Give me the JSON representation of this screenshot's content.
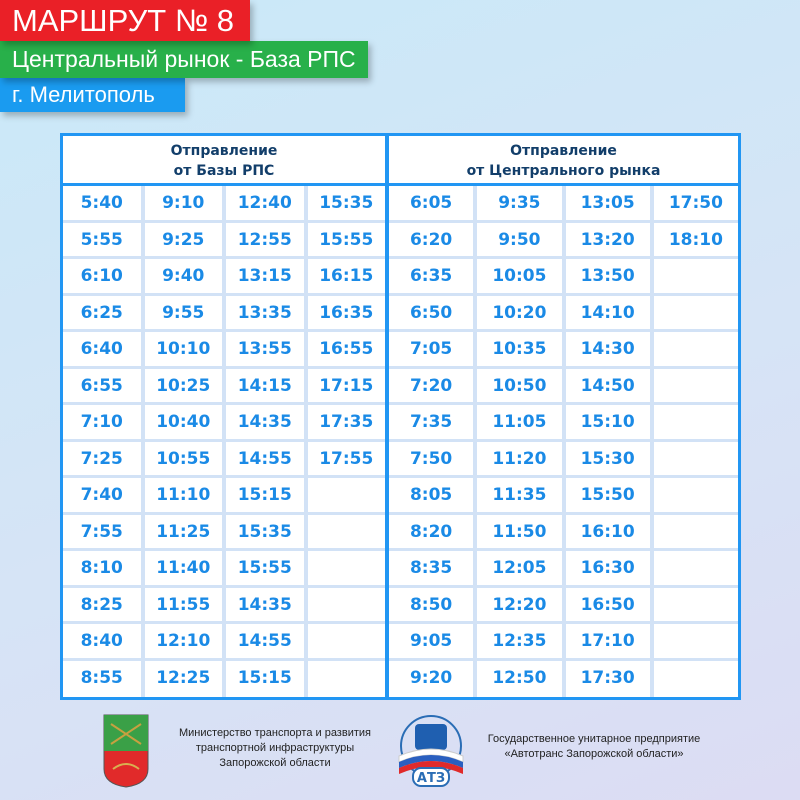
{
  "header": {
    "route": "МАРШРУТ № 8",
    "route_name": "Центральный рынок - База РПС",
    "city": "г. Мелитополь"
  },
  "left": {
    "title1": "Отправление",
    "title2": "от Базы РПС",
    "rows": [
      [
        "5:40",
        "9:10",
        "12:40",
        "15:35"
      ],
      [
        "5:55",
        "9:25",
        "12:55",
        "15:55"
      ],
      [
        "6:10",
        "9:40",
        "13:15",
        "16:15"
      ],
      [
        "6:25",
        "9:55",
        "13:35",
        "16:35"
      ],
      [
        "6:40",
        "10:10",
        "13:55",
        "16:55"
      ],
      [
        "6:55",
        "10:25",
        "14:15",
        "17:15"
      ],
      [
        "7:10",
        "10:40",
        "14:35",
        "17:35"
      ],
      [
        "7:25",
        "10:55",
        "14:55",
        "17:55"
      ],
      [
        "7:40",
        "11:10",
        "15:15",
        ""
      ],
      [
        "7:55",
        "11:25",
        "15:35",
        ""
      ],
      [
        "8:10",
        "11:40",
        "15:55",
        ""
      ],
      [
        "8:25",
        "11:55",
        "14:35",
        ""
      ],
      [
        "8:40",
        "12:10",
        "14:55",
        ""
      ],
      [
        "8:55",
        "12:25",
        "15:15",
        ""
      ]
    ]
  },
  "right": {
    "title1": "Отправление",
    "title2": "от Центрального рынка",
    "rows": [
      [
        "6:05",
        "9:35",
        "13:05",
        "17:50"
      ],
      [
        "6:20",
        "9:50",
        "13:20",
        "18:10"
      ],
      [
        "6:35",
        "10:05",
        "13:50",
        ""
      ],
      [
        "6:50",
        "10:20",
        "14:10",
        ""
      ],
      [
        "7:05",
        "10:35",
        "14:30",
        ""
      ],
      [
        "7:20",
        "10:50",
        "14:50",
        ""
      ],
      [
        "7:35",
        "11:05",
        "15:10",
        ""
      ],
      [
        "7:50",
        "11:20",
        "15:30",
        ""
      ],
      [
        "8:05",
        "11:35",
        "15:50",
        ""
      ],
      [
        "8:20",
        "11:50",
        "16:10",
        ""
      ],
      [
        "8:35",
        "12:05",
        "16:30",
        ""
      ],
      [
        "8:50",
        "12:20",
        "16:50",
        ""
      ],
      [
        "9:05",
        "12:35",
        "17:10",
        ""
      ],
      [
        "9:20",
        "12:50",
        "17:30",
        ""
      ]
    ]
  },
  "footer": {
    "ministry": [
      "Министерство транспорта и развития",
      "транспортной инфраструктуры",
      "Запорожской области"
    ],
    "company": [
      "Государственное унитарное предприятие",
      "«Автотранс Запорожской области»"
    ],
    "logo_text": "АТЗ"
  },
  "colors": {
    "red": "#ea2027",
    "green": "#28b04a",
    "blue": "#1a9bf0",
    "table_border": "#2196f3",
    "time_text": "#1a8ae6"
  }
}
